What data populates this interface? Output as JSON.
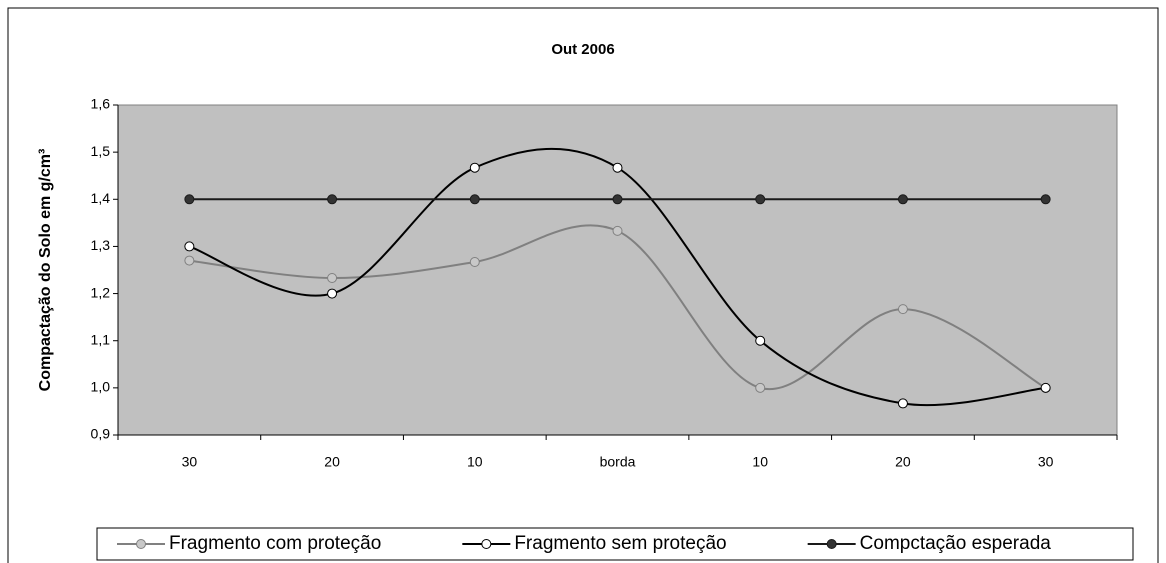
{
  "chart_data": {
    "type": "line",
    "title": "Out 2006",
    "y_label": "Compactação do Solo em g/cm³",
    "categories": [
      "30",
      "20",
      "10",
      "borda",
      "10",
      "20",
      "30"
    ],
    "series": [
      {
        "name": "Fragmento com proteção",
        "color": "#808080",
        "marker_color": "#c8c8c8",
        "values": [
          1.27,
          1.233,
          1.267,
          1.333,
          1.0,
          1.167,
          1.0
        ]
      },
      {
        "name": "Fragmento sem proteção",
        "color": "#000000",
        "marker_color": "#ffffff",
        "values": [
          1.3,
          1.2,
          1.467,
          1.467,
          1.1,
          0.967,
          1.0
        ]
      },
      {
        "name": "Compctação esperada",
        "color": "#1a1a1a",
        "marker_color": "#333333",
        "values": [
          1.4,
          1.4,
          1.4,
          1.4,
          1.4,
          1.4,
          1.4
        ]
      }
    ],
    "ylim": [
      0.9,
      1.6
    ],
    "yticks": [
      {
        "value": 0.9,
        "label": "0,9"
      },
      {
        "value": 1.0,
        "label": "1,0"
      },
      {
        "value": 1.1,
        "label": "1,1"
      },
      {
        "value": 1.2,
        "label": "1,2"
      },
      {
        "value": 1.3,
        "label": "1,3"
      },
      {
        "value": 1.4,
        "label": "1,4"
      },
      {
        "value": 1.5,
        "label": "1,5"
      },
      {
        "value": 1.6,
        "label": "1,6"
      }
    ],
    "smooth": true,
    "plot_background": "#c0c0c0",
    "legend": "bottom"
  }
}
